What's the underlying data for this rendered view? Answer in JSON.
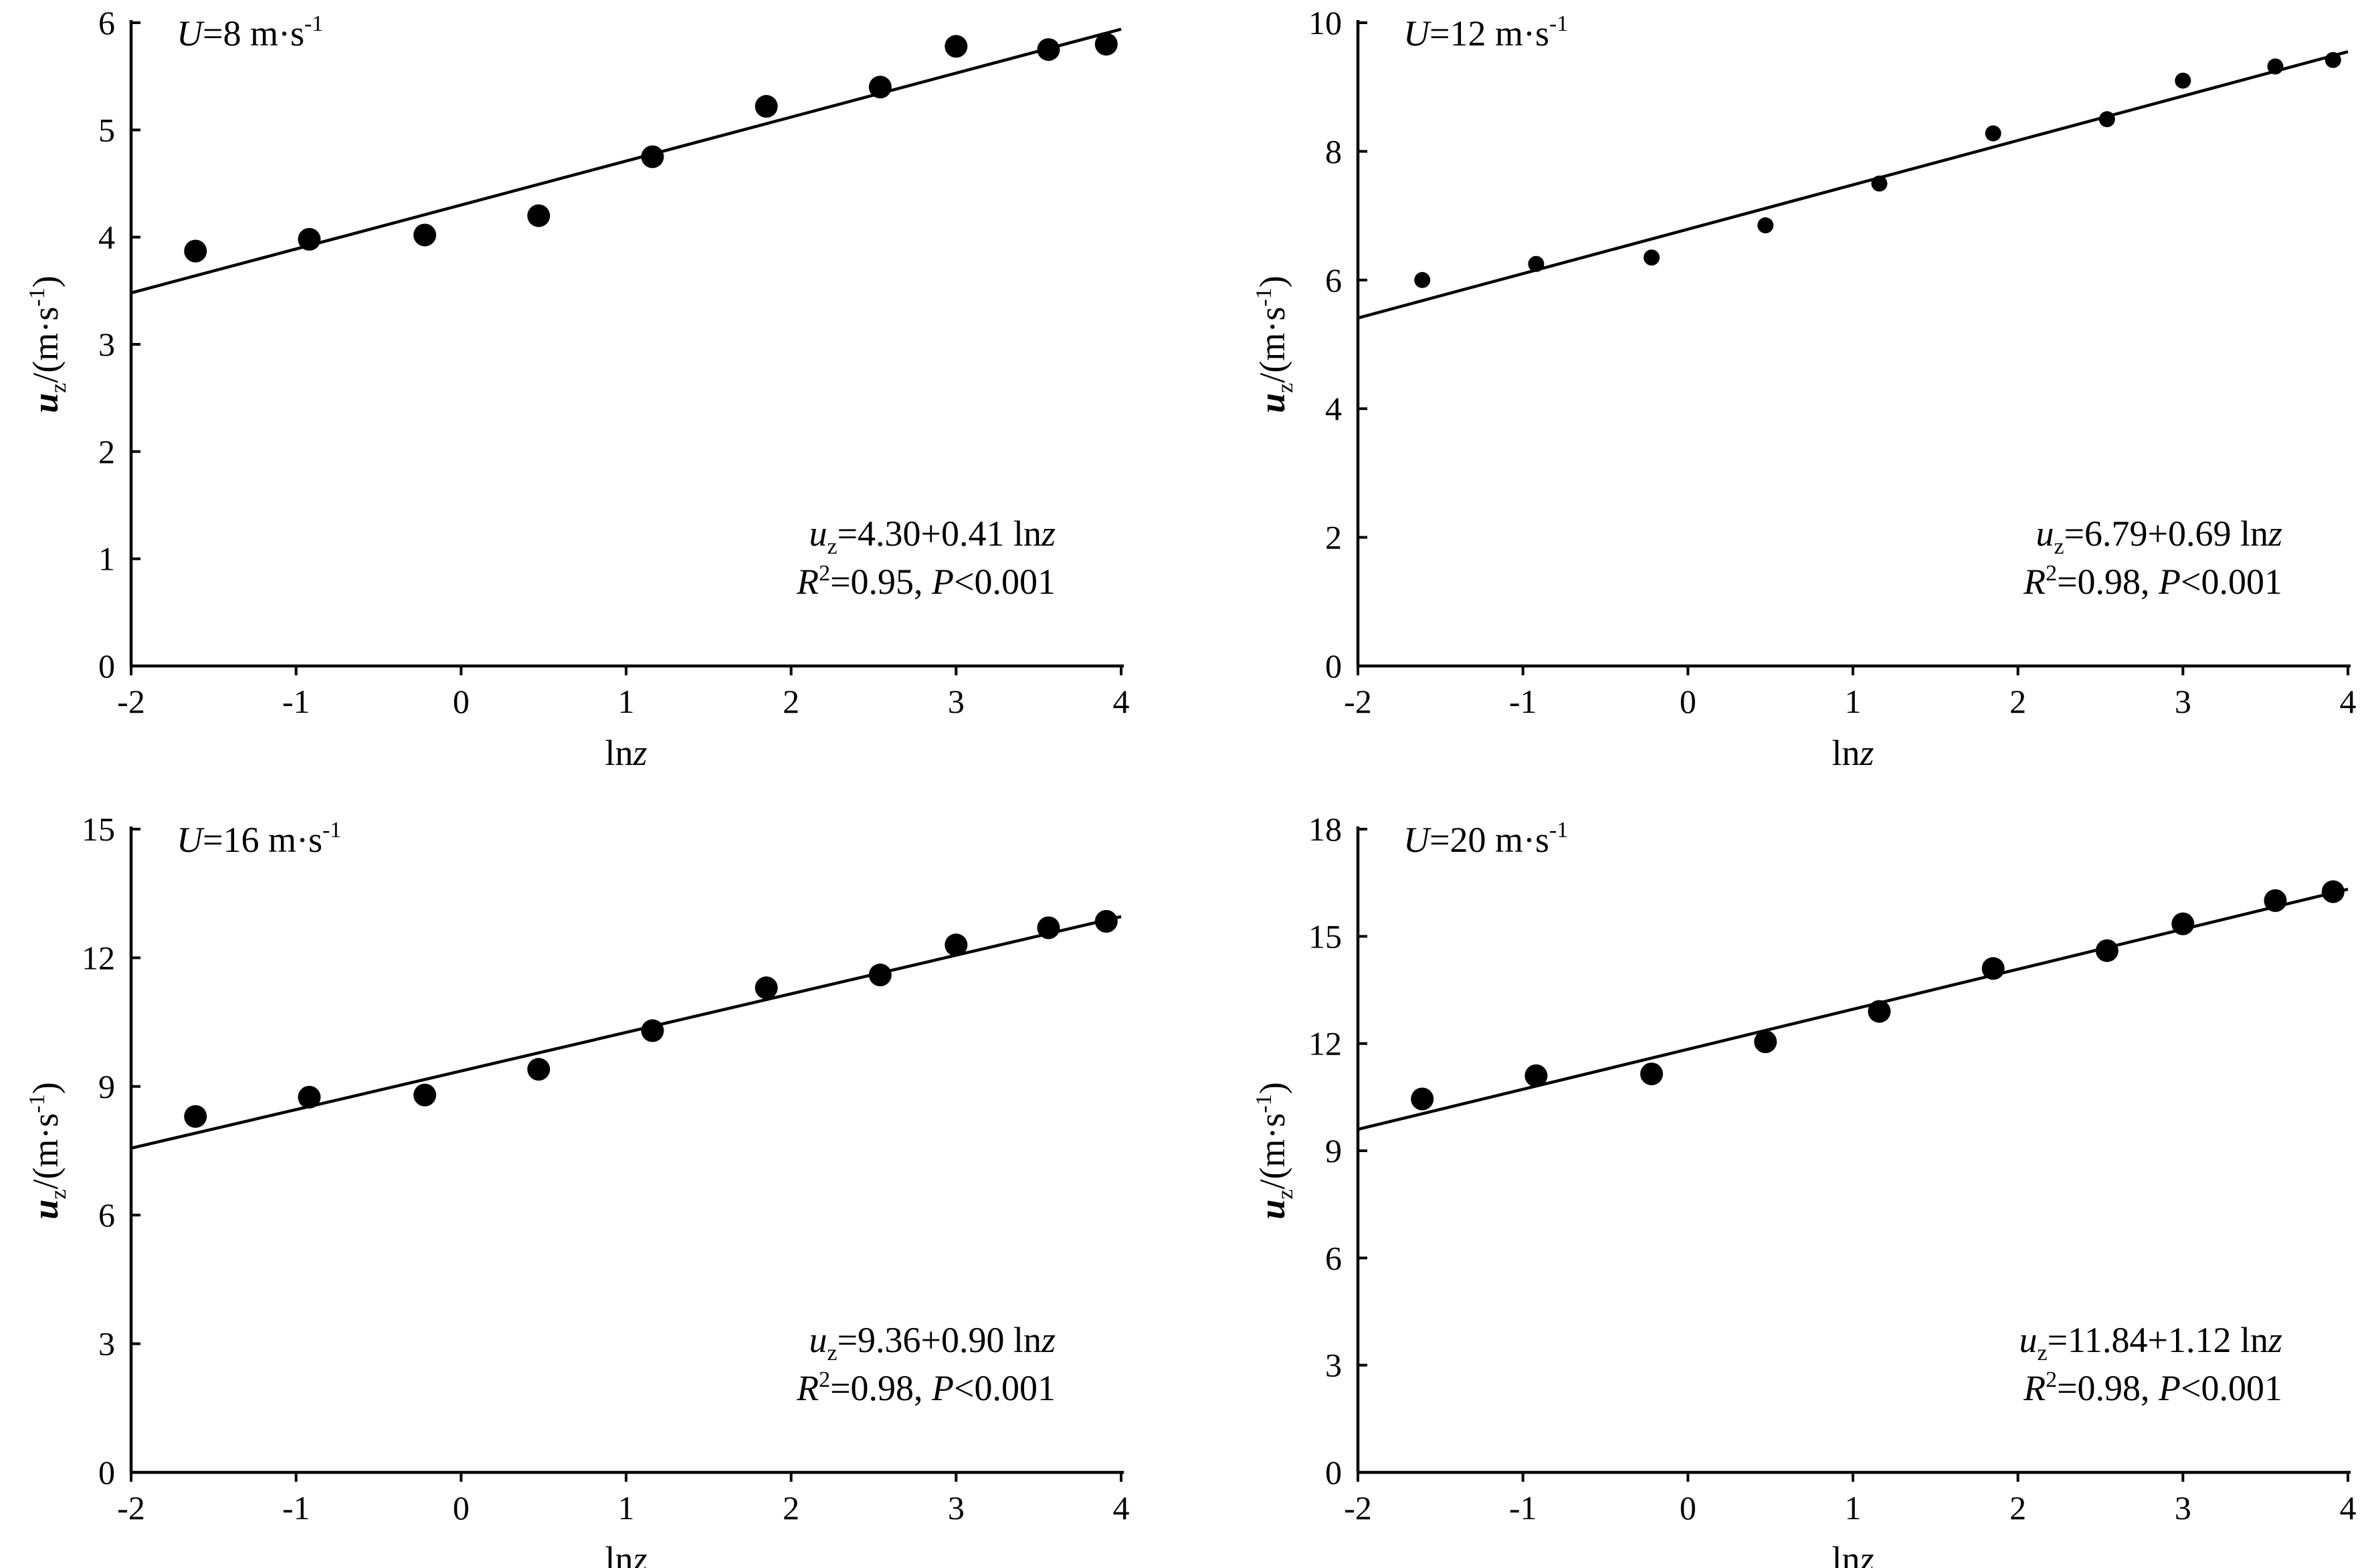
{
  "chart_data": [
    {
      "type": "scatter",
      "panel_label": {
        "var": "U",
        "value": "=8 m·s",
        "sup": "-1"
      },
      "xlabel": {
        "text": "ln",
        "italic": "z"
      },
      "ylabel": {
        "var": "u",
        "sub": "z",
        "unit": "/(m·s",
        "sup": "-1",
        "close": ")"
      },
      "xlim": [
        -2,
        4
      ],
      "ylim": [
        0,
        6
      ],
      "xticks": [
        -2,
        -1,
        0,
        1,
        2,
        3,
        4
      ],
      "yticks": [
        0,
        1,
        2,
        3,
        4,
        5,
        6
      ],
      "x_tick_labels": [
        "-2",
        "-1",
        "0",
        "1",
        "2",
        "3",
        "4"
      ],
      "y_tick_labels": [
        "0",
        "1",
        "2",
        "3",
        "4",
        "5",
        "6"
      ],
      "points": {
        "x": [
          -1.61,
          -0.92,
          -0.22,
          0.47,
          1.16,
          1.85,
          2.54,
          3.0,
          3.56,
          3.91
        ],
        "y": [
          3.87,
          3.98,
          4.02,
          4.2,
          4.75,
          5.22,
          5.4,
          5.78,
          5.75,
          5.8
        ]
      },
      "point_size": "large",
      "fit": {
        "intercept": 4.3,
        "slope": 0.41,
        "x_range": [
          -2,
          4
        ]
      },
      "equation": {
        "var": "u",
        "sub": "z",
        "rhs": "=4.30+0.41 ln",
        "rhs_var": "z"
      },
      "stats": {
        "var": "R",
        "sup": "2",
        "rhs": "=0.95, ",
        "p_var": "P",
        "p_rhs": "<0.001"
      }
    },
    {
      "type": "scatter",
      "panel_label": {
        "var": "U",
        "value": "=12 m·s",
        "sup": "-1"
      },
      "xlabel": {
        "text": "ln",
        "italic": "z"
      },
      "ylabel": {
        "var": "u",
        "sub": "z",
        "unit": "/(m·s",
        "sup": "-1",
        "close": ")"
      },
      "xlim": [
        -2,
        4
      ],
      "ylim": [
        0,
        10
      ],
      "xticks": [
        -2,
        -1,
        0,
        1,
        2,
        3,
        4
      ],
      "yticks": [
        0,
        2,
        4,
        6,
        8,
        10
      ],
      "x_tick_labels": [
        "-2",
        "-1",
        "0",
        "1",
        "2",
        "3",
        "4"
      ],
      "y_tick_labels": [
        "0",
        "2",
        "4",
        "6",
        "8",
        "10"
      ],
      "points": {
        "x": [
          -1.61,
          -0.92,
          -0.22,
          0.47,
          1.16,
          1.85,
          2.54,
          3.0,
          3.56,
          3.91
        ],
        "y": [
          6.0,
          6.25,
          6.35,
          6.85,
          7.5,
          8.28,
          8.5,
          9.1,
          9.32,
          9.42
        ]
      },
      "point_size": "small",
      "fit": {
        "intercept": 6.79,
        "slope": 0.69,
        "x_range": [
          -2,
          4
        ]
      },
      "equation": {
        "var": "u",
        "sub": "z",
        "rhs": "=6.79+0.69 ln",
        "rhs_var": "z"
      },
      "stats": {
        "var": "R",
        "sup": "2",
        "rhs": "=0.98, ",
        "p_var": "P",
        "p_rhs": "<0.001"
      }
    },
    {
      "type": "scatter",
      "panel_label": {
        "var": "U",
        "value": "=16 m·s",
        "sup": "-1"
      },
      "xlabel": {
        "text": "ln",
        "italic": "z"
      },
      "ylabel": {
        "var": "u",
        "sub": "z",
        "unit": "/(m·s",
        "sup": "-1",
        "close": ")"
      },
      "xlim": [
        -2,
        4
      ],
      "ylim": [
        0,
        15
      ],
      "xticks": [
        -2,
        -1,
        0,
        1,
        2,
        3,
        4
      ],
      "yticks": [
        0,
        3,
        6,
        9,
        12,
        15
      ],
      "x_tick_labels": [
        "-2",
        "-1",
        "0",
        "1",
        "2",
        "3",
        "4"
      ],
      "y_tick_labels": [
        "0",
        "3",
        "6",
        "9",
        "12",
        "15"
      ],
      "points": {
        "x": [
          -1.61,
          -0.92,
          -0.22,
          0.47,
          1.16,
          1.85,
          2.54,
          3.0,
          3.56,
          3.91
        ],
        "y": [
          8.3,
          8.75,
          8.8,
          9.4,
          10.3,
          11.3,
          11.6,
          12.3,
          12.7,
          12.85
        ]
      },
      "point_size": "large",
      "fit": {
        "intercept": 9.36,
        "slope": 0.9,
        "x_range": [
          -2,
          4
        ]
      },
      "equation": {
        "var": "u",
        "sub": "z",
        "rhs": "=9.36+0.90 ln",
        "rhs_var": "z"
      },
      "stats": {
        "var": "R",
        "sup": "2",
        "rhs": "=0.98, ",
        "p_var": "P",
        "p_rhs": "<0.001"
      }
    },
    {
      "type": "scatter",
      "panel_label": {
        "var": "U",
        "value": "=20 m·s",
        "sup": "-1"
      },
      "xlabel": {
        "text": "ln",
        "italic": "z"
      },
      "ylabel": {
        "var": "u",
        "sub": "z",
        "unit": "/(m·s",
        "sup": "-1",
        "close": ")"
      },
      "xlim": [
        -2,
        4
      ],
      "ylim": [
        0,
        18
      ],
      "xticks": [
        -2,
        -1,
        0,
        1,
        2,
        3,
        4
      ],
      "yticks": [
        0,
        3,
        6,
        9,
        12,
        15,
        18
      ],
      "x_tick_labels": [
        "-2",
        "-1",
        "0",
        "1",
        "2",
        "3",
        "4"
      ],
      "y_tick_labels": [
        "0",
        "3",
        "6",
        "9",
        "12",
        "15",
        "18"
      ],
      "points": {
        "x": [
          -1.61,
          -0.92,
          -0.22,
          0.47,
          1.16,
          1.85,
          2.54,
          3.0,
          3.56,
          3.91
        ],
        "y": [
          10.45,
          11.1,
          11.15,
          12.05,
          12.9,
          14.1,
          14.6,
          15.35,
          16.0,
          16.25
        ]
      },
      "point_size": "large",
      "fit": {
        "intercept": 11.84,
        "slope": 1.12,
        "x_range": [
          -2,
          4
        ]
      },
      "equation": {
        "var": "u",
        "sub": "z",
        "rhs": "=11.84+1.12 ln",
        "rhs_var": "z"
      },
      "stats": {
        "var": "R",
        "sup": "2",
        "rhs": "=0.98, ",
        "p_var": "P",
        "p_rhs": "<0.001"
      }
    }
  ]
}
